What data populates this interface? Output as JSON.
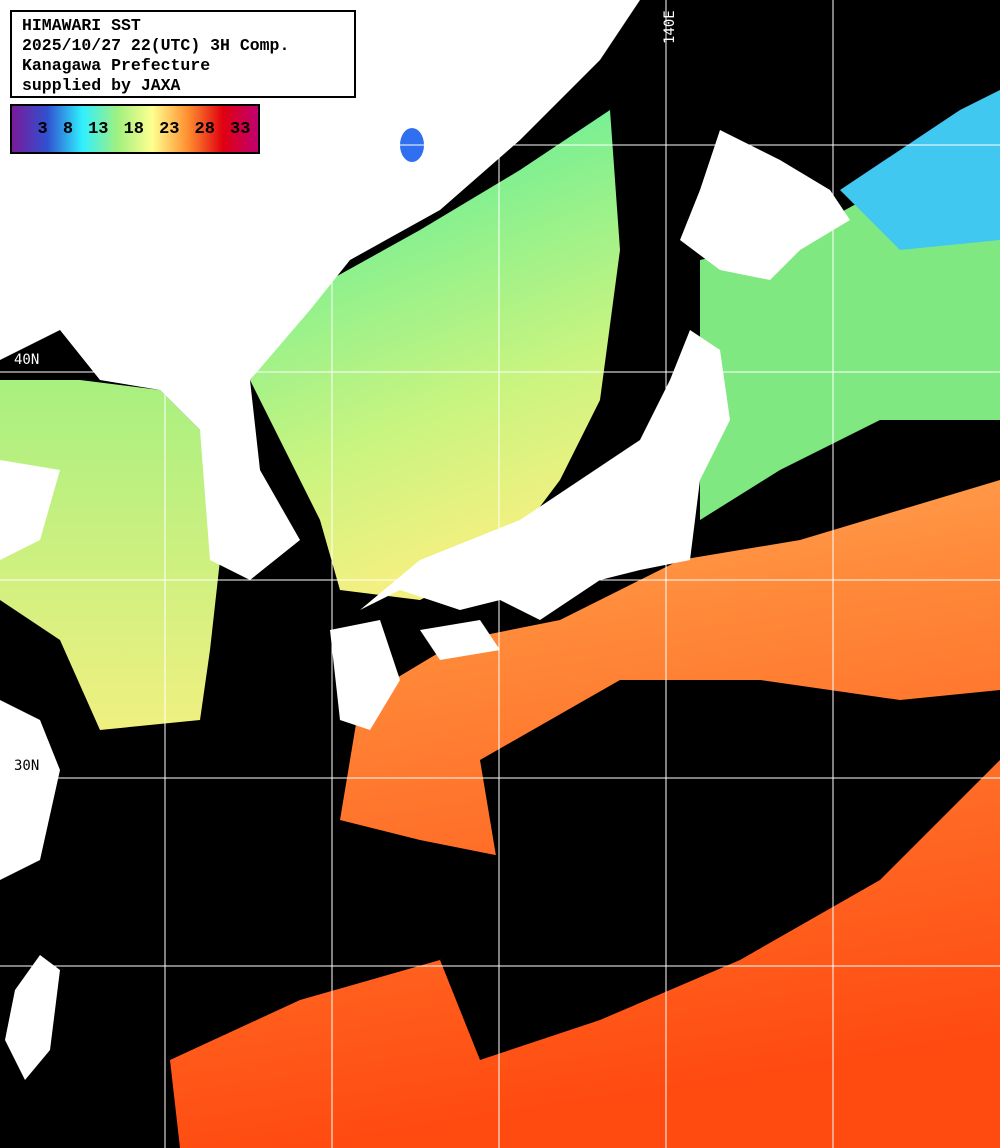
{
  "header": {
    "title": "HIMAWARI SST",
    "datetime": "2025/10/27 22(UTC) 3H Comp.",
    "region": "Kanagawa Prefecture",
    "credit": "supplied by JAXA"
  },
  "colorbar": {
    "ticks": [
      "3",
      "8",
      "13",
      "18",
      "23",
      "28",
      "33"
    ],
    "colors": [
      "#7a1a9a",
      "#3050d0",
      "#30f0ff",
      "#a0f080",
      "#ffff90",
      "#ff9030",
      "#e00010",
      "#c00070"
    ]
  },
  "grid_labels": {
    "lat_40": "40N",
    "lat_30": "30N",
    "lon_140": "140E"
  },
  "map_colors": {
    "land": "#ffffff",
    "no_data": "#000000",
    "grid": "#ffffff"
  }
}
